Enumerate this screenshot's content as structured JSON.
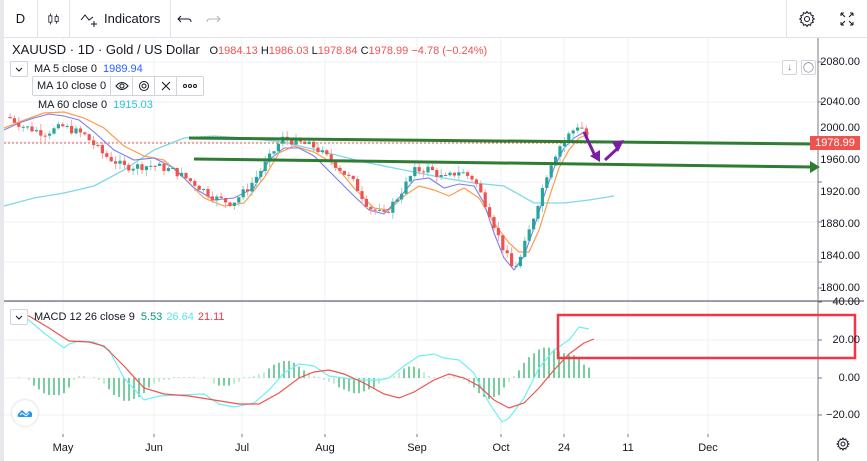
{
  "toolbar": {
    "interval": "D",
    "chart_type_icon": "candles-icon",
    "indicators_label": "Indicators",
    "undo_icon": "undo-icon",
    "redo_icon": "redo-icon",
    "settings_icon": "gear-icon",
    "fullscreen_icon": "fullscreen-icon"
  },
  "legend": {
    "symbol": "XAUUSD · 1D · Gold / US Dollar",
    "open_key": "O",
    "open": "1984.13",
    "high_key": "H",
    "high": "1986.03",
    "low_key": "L",
    "low": "1978.84",
    "close_key": "C",
    "close": "1978.99",
    "change": "−4.78 (−0.24%)"
  },
  "indicators": [
    {
      "label": "MA 5 close 0",
      "value": "1989.94",
      "color": "#2962ff"
    },
    {
      "label": "MA 10 close 0",
      "value": "",
      "color": "#ff9800"
    },
    {
      "label": "MA 60 close 0",
      "value": "1915.03",
      "color": "#26c6da"
    }
  ],
  "macd": {
    "label": "MACD 12 26 close 9",
    "histogram": "5.53",
    "macd": "26.64",
    "signal": "21.11",
    "colors": {
      "histogram": "#26a69a",
      "macd": "#6ff0f0",
      "signal": "#ef5350"
    }
  },
  "price_axis": {
    "labels": [
      "2080.00",
      "2040.00",
      "2000.00",
      "1960.00",
      "1920.00",
      "1880.00",
      "1840.00",
      "1800.00"
    ],
    "current_price": "1978.99",
    "current_price_color": "#ef5350"
  },
  "macd_axis": {
    "labels": [
      "40.00",
      "20.00",
      "0.00",
      "−20.00"
    ]
  },
  "time_axis": {
    "labels": [
      "May",
      "Jun",
      "Jul",
      "Aug",
      "Sep",
      "Oct",
      "24",
      "11",
      "Dec"
    ]
  },
  "axis_buttons": {
    "scroll_down": "↓",
    "auto": "◯"
  },
  "annotations": {
    "trendlines_color": "#2e7d32",
    "arrows_color": "#7b1fa2",
    "highlight_box_color": "#f23645"
  },
  "chart_data": {
    "type": "candlestick",
    "title": "XAUUSD · 1D · Gold / US Dollar",
    "ylim": [
      1790,
      2100
    ],
    "approx_close_path": [
      {
        "x": "May",
        "y": 2010
      },
      {
        "x": "mid-May",
        "y": 1995
      },
      {
        "x": "Jun",
        "y": 1960
      },
      {
        "x": "mid-Jun",
        "y": 1950
      },
      {
        "x": "Jul",
        "y": 1910
      },
      {
        "x": "late-Jul",
        "y": 1985
      },
      {
        "x": "Aug",
        "y": 1965
      },
      {
        "x": "late-Aug",
        "y": 1890
      },
      {
        "x": "Sep",
        "y": 1945
      },
      {
        "x": "mid-Sep",
        "y": 1935
      },
      {
        "x": "Oct",
        "y": 1830
      },
      {
        "x": "mid-Oct",
        "y": 1920
      },
      {
        "x": "24",
        "y": 2005
      },
      {
        "x": "end",
        "y": 1978.99
      }
    ],
    "ma": {
      "MA5": 1989.94,
      "MA60": 1915.03
    },
    "macd": {
      "histogram": 5.53,
      "macd": 26.64,
      "signal": 21.11,
      "ylim": [
        -30,
        42
      ]
    }
  }
}
